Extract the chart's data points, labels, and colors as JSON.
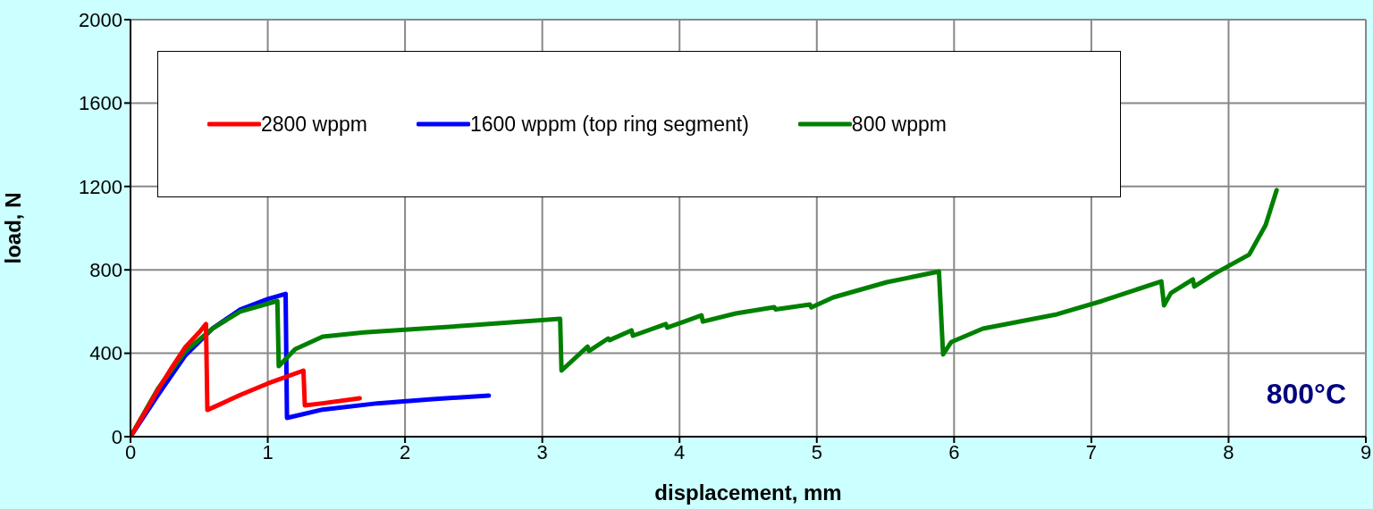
{
  "chart_data": {
    "type": "line",
    "xlabel": "displacement, mm",
    "ylabel": "load, N",
    "xlim": [
      0,
      9
    ],
    "xticks": [
      0,
      1,
      2,
      3,
      4,
      5,
      6,
      7,
      8,
      9
    ],
    "ylim": [
      0,
      2000
    ],
    "yticks": [
      0,
      400,
      800,
      1200,
      1600,
      2000
    ],
    "grid": true,
    "legend": "top",
    "marker": "none",
    "line_style": "solid",
    "annotations": [
      "800°C"
    ],
    "series": [
      {
        "name": "2800 wppm",
        "color": "#ff0000",
        "x": [
          0,
          0.1,
          0.2,
          0.3,
          0.4,
          0.5,
          0.55,
          0.56,
          0.8,
          1.0,
          1.26,
          1.27,
          1.4,
          1.67
        ],
        "values": [
          0,
          110,
          225,
          330,
          430,
          500,
          540,
          128,
          200,
          255,
          317,
          150,
          160,
          184
        ]
      },
      {
        "name": "1600 wppm (top ring segment)",
        "color": "#0000ff",
        "x": [
          0,
          0.2,
          0.4,
          0.6,
          0.8,
          1.0,
          1.13,
          1.14,
          1.4,
          1.8,
          2.2,
          2.61
        ],
        "values": [
          0,
          200,
          390,
          520,
          610,
          660,
          685,
          90,
          130,
          160,
          180,
          197
        ]
      },
      {
        "name": "800 wppm",
        "color": "#008000",
        "x": [
          0,
          0.2,
          0.4,
          0.6,
          0.8,
          1.07,
          1.08,
          1.2,
          1.4,
          1.7,
          2.5,
          3.13,
          3.14,
          3.33,
          3.34,
          3.48,
          3.49,
          3.65,
          3.66,
          3.9,
          3.91,
          4.16,
          4.17,
          4.41,
          4.69,
          4.7,
          4.95,
          4.96,
          5.12,
          5.51,
          5.89,
          5.92,
          5.98,
          6.21,
          6.75,
          7.08,
          7.51,
          7.53,
          7.58,
          7.74,
          7.75,
          7.89,
          8.15,
          8.27,
          8.35
        ],
        "values": [
          0,
          230,
          410,
          520,
          600,
          651,
          338,
          420,
          480,
          500,
          535,
          565,
          317,
          432,
          411,
          471,
          463,
          510,
          484,
          540,
          523,
          582,
          552,
          591,
          621,
          610,
          634,
          620,
          668,
          741,
          792,
          394,
          454,
          518,
          587,
          651,
          745,
          630,
          689,
          754,
          720,
          779,
          873,
          1015,
          1182
        ]
      }
    ]
  }
}
